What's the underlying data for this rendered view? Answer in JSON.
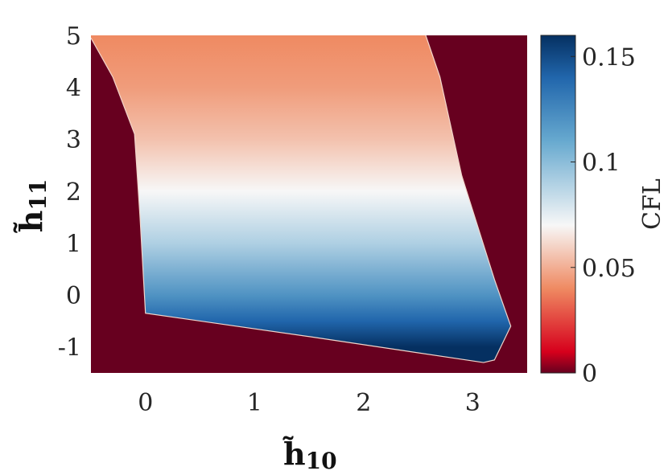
{
  "chart_data": {
    "type": "heatmap",
    "x_range": [
      -0.5,
      3.5
    ],
    "y_range": [
      -1.5,
      5
    ],
    "xlabel": "h̃",
    "xlabel_sub": "10",
    "ylabel": "h̃",
    "ylabel_sub": "11",
    "x_ticks": [
      0,
      1,
      2,
      3
    ],
    "x_tick_labels": [
      "0",
      "1",
      "2",
      "3"
    ],
    "y_ticks": [
      -1,
      0,
      1,
      2,
      3,
      4,
      5
    ],
    "y_tick_labels": [
      "-1",
      "0",
      "1",
      "2",
      "3",
      "4",
      "5"
    ],
    "colorbar": {
      "label": "CFL",
      "range": [
        0,
        0.16
      ],
      "ticks": [
        0,
        0.05,
        0.1,
        0.15
      ],
      "tick_labels": [
        "0",
        "0.05",
        "0.1",
        "0.15"
      ],
      "colors": [
        {
          "value": 0.0,
          "color": "#67001f"
        },
        {
          "value": 0.01,
          "color": "#d6001c"
        },
        {
          "value": 0.04,
          "color": "#ef8a62"
        },
        {
          "value": 0.07,
          "color": "#f7f7f7"
        },
        {
          "value": 0.11,
          "color": "#67a9cf"
        },
        {
          "value": 0.14,
          "color": "#2166ac"
        },
        {
          "value": 0.16,
          "color": "#053061"
        }
      ]
    },
    "outside_region_value": 0,
    "stable_region_boundary": [
      {
        "x": -0.5,
        "y": 4.95
      },
      {
        "x": -0.3,
        "y": 4.2
      },
      {
        "x": -0.1,
        "y": 3.1
      },
      {
        "x": -0.05,
        "y": 1.5
      },
      {
        "x": 0.0,
        "y": -0.35
      },
      {
        "x": 1.5,
        "y": -0.8
      },
      {
        "x": 3.1,
        "y": -1.3
      },
      {
        "x": 3.2,
        "y": -1.25
      },
      {
        "x": 3.35,
        "y": -0.6
      },
      {
        "x": 3.2,
        "y": 0.3
      },
      {
        "x": 2.9,
        "y": 2.3
      },
      {
        "x": 2.7,
        "y": 4.2
      },
      {
        "x": 2.57,
        "y": 5.0
      },
      {
        "x": -0.5,
        "y": 5.0
      }
    ],
    "cfl_field_samples": [
      {
        "y": -1.0,
        "cfl": 0.16
      },
      {
        "y": -0.5,
        "cfl": 0.14
      },
      {
        "y": 0.0,
        "cfl": 0.12
      },
      {
        "y": 1.0,
        "cfl": 0.09
      },
      {
        "y": 2.0,
        "cfl": 0.07
      },
      {
        "y": 3.0,
        "cfl": 0.055
      },
      {
        "y": 4.0,
        "cfl": 0.045
      },
      {
        "y": 5.0,
        "cfl": 0.04
      }
    ]
  }
}
